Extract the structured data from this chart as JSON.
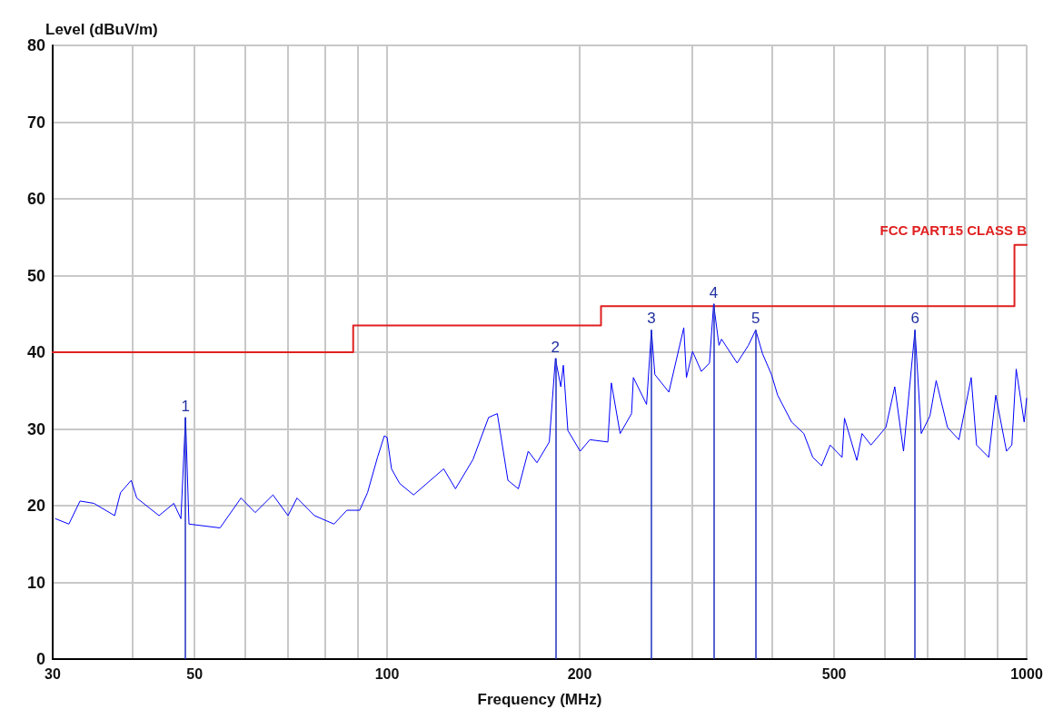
{
  "chart_data": {
    "type": "line",
    "xlabel": "Frequency (MHz)",
    "ylabel": "Level (dBuV/m)",
    "log": "x",
    "xlim": [
      30,
      1000
    ],
    "xticks": [
      30,
      {
        "value": 40,
        "label": null
      },
      50,
      {
        "value": 60,
        "label": null
      },
      {
        "value": 70,
        "label": null
      },
      {
        "value": 80,
        "label": null
      },
      {
        "value": 90,
        "label": null
      },
      100,
      200,
      {
        "value": 300,
        "label": null
      },
      {
        "value": 400,
        "label": null
      },
      500,
      {
        "value": 600,
        "label": null
      },
      {
        "value": 700,
        "label": null
      },
      {
        "value": 800,
        "label": null
      },
      {
        "value": 900,
        "label": null
      },
      1000
    ],
    "ylim": [
      0,
      80
    ],
    "yticks": [
      0,
      10,
      20,
      30,
      40,
      50,
      60,
      70,
      80
    ],
    "grid": true,
    "legend": false,
    "marker": "none",
    "line_style": "solid",
    "series": [
      {
        "color": "#0000ff",
        "x": [
          30.3,
          31.8,
          33.1,
          34.8,
          37.5,
          38.3,
          39.8,
          40.6,
          44.0,
          46.4,
          47.6,
          48.4,
          49.0,
          54.8,
          59.1,
          62.2,
          66.3,
          70.0,
          72.3,
          77.0,
          82.6,
          86.5,
          90.6,
          93.2,
          96.6,
          99.0,
          100,
          101.6,
          104.6,
          110.0,
          122.6,
          127.9,
          136.2,
          144.1,
          148.7,
          154.5,
          160.4,
          166.2,
          171.5,
          179.3,
          183.3,
          186.9,
          188.6,
          191.7,
          200.4,
          207.5,
          221.4,
          224.2,
          231.4,
          241.1,
          242.7,
          254.5,
          259,
          262.2,
          275.8,
          291.0,
          293.8,
          300.3,
          310.0,
          319.2,
          324,
          330.3,
          333.4,
          352.6,
          367.2,
          377,
          386.4,
          399,
          408,
          429,
          448.3,
          463,
          478,
          493,
          514.5,
          519,
          542.6,
          552.9,
          570.8,
          602.4,
          622,
          641.9,
          669,
          684.2,
          706,
          722,
          752,
          783.6,
          819,
          835,
          872.4,
          894.7,
          930,
          948,
          963,
          991,
          1000
        ],
        "values": [
          18.3,
          17.6,
          20.6,
          20.3,
          18.7,
          21.7,
          23.3,
          21.0,
          18.7,
          20.3,
          18.3,
          31.5,
          17.6,
          17.1,
          21.0,
          19.1,
          21.4,
          18.7,
          21.0,
          18.7,
          17.6,
          19.4,
          19.4,
          21.7,
          26.3,
          29.1,
          28.9,
          24.8,
          22.9,
          21.4,
          24.8,
          22.2,
          26.0,
          31.5,
          32.0,
          23.3,
          22.2,
          27.1,
          25.6,
          28.3,
          39.2,
          35.5,
          38.3,
          29.8,
          27.1,
          28.6,
          28.3,
          36.0,
          29.4,
          32.0,
          36.7,
          33.2,
          42.9,
          37.1,
          34.8,
          43.2,
          36.7,
          40.1,
          37.5,
          38.6,
          46.3,
          40.9,
          41.7,
          38.6,
          40.9,
          42.9,
          39.8,
          37.1,
          34.4,
          30.9,
          29.4,
          26.3,
          25.2,
          27.9,
          26.3,
          31.4,
          25.9,
          29.4,
          27.9,
          30.2,
          35.5,
          27.1,
          42.9,
          29.4,
          31.7,
          36.3,
          30.2,
          28.6,
          36.7,
          27.9,
          26.3,
          34.4,
          27.1,
          27.9,
          37.8,
          30.9,
          34.0
        ]
      },
      {
        "name": "FCC PART15 CLASS B",
        "color": "#e02020",
        "x": [
          30,
          88.5,
          88.5,
          216,
          216,
          957,
          957,
          1000
        ],
        "values": [
          40,
          40,
          43.5,
          43.5,
          46,
          46,
          54,
          54
        ]
      }
    ],
    "annotations": [
      {
        "text": "1",
        "x": 48.4,
        "y": 31.5
      },
      {
        "text": "2",
        "x": 183.3,
        "y": 39.2
      },
      {
        "text": "3",
        "x": 259,
        "y": 42.9
      },
      {
        "text": "4",
        "x": 324,
        "y": 46.3
      },
      {
        "text": "5",
        "x": 377,
        "y": 42.9
      },
      {
        "text": "6",
        "x": 669,
        "y": 42.9
      }
    ]
  }
}
